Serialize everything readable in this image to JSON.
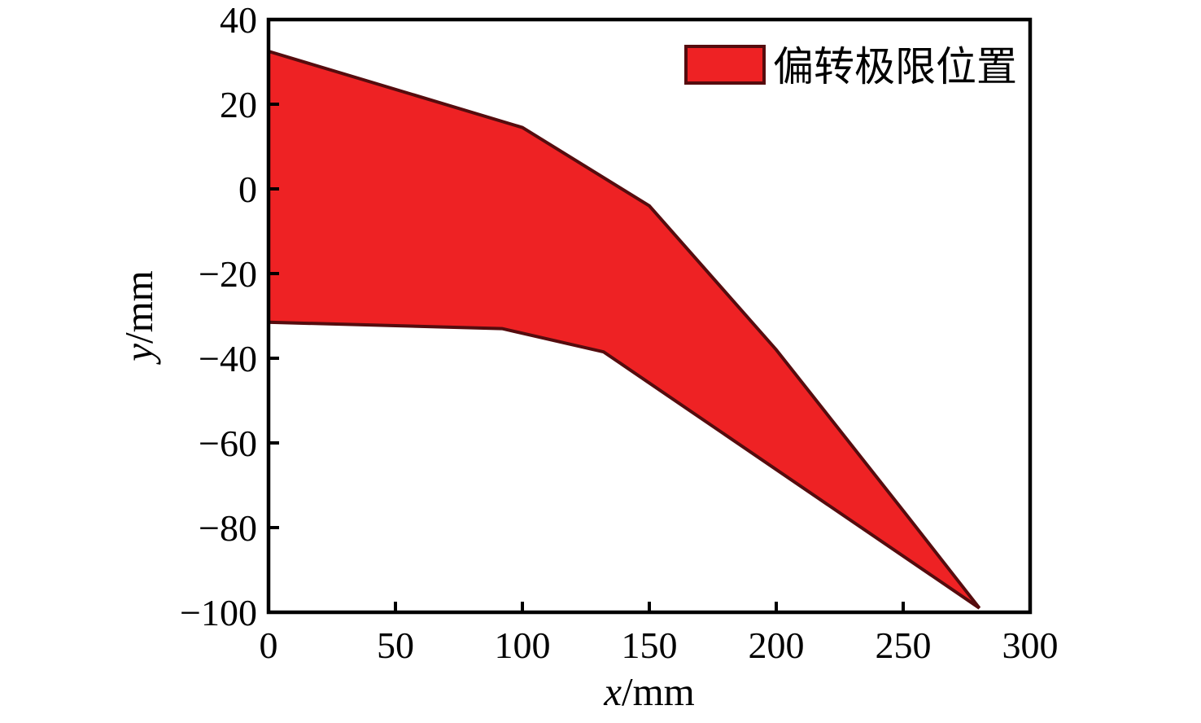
{
  "figure": {
    "background": "#ffffff"
  },
  "chart_data": {
    "type": "area",
    "title": "",
    "xlabel": "x/mm",
    "ylabel": "y/mm",
    "xlim": [
      0,
      300
    ],
    "ylim": [
      -100,
      40
    ],
    "xticks": [
      0,
      50,
      100,
      150,
      200,
      250,
      300
    ],
    "xtick_labels": [
      "0",
      "50",
      "100",
      "150",
      "200",
      "250",
      "300"
    ],
    "yticks": [
      40,
      20,
      0,
      -20,
      -40,
      -60,
      -80,
      -100
    ],
    "ytick_labels": [
      "40",
      "20",
      "0",
      "−20",
      "−40",
      "−60",
      "−80",
      "−100"
    ],
    "grid": false,
    "legend_position": "upper-right-inside",
    "legend": [
      {
        "label": "偏转极限位置",
        "fill": "#ee2224",
        "edge": "#550c0e"
      }
    ],
    "series": [
      {
        "name": "偏转极限位置",
        "type": "filled-polygon",
        "fill_color": "#ee2224",
        "edge_color": "#550c0e",
        "edge_width": 4,
        "points": [
          [
            0,
            32.5
          ],
          [
            100,
            14.5
          ],
          [
            150,
            -4
          ],
          [
            200,
            -38
          ],
          [
            250,
            -76
          ],
          [
            280,
            -99
          ],
          [
            132,
            -38.5
          ],
          [
            92,
            -33
          ],
          [
            0,
            -31.5
          ]
        ]
      }
    ]
  }
}
